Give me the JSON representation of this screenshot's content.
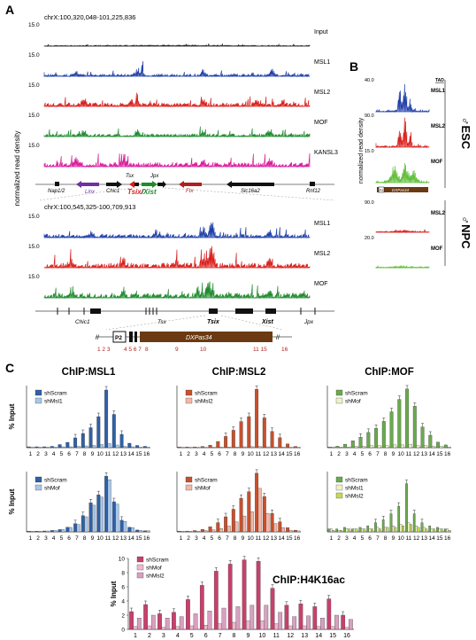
{
  "panel_a": {
    "letter": "A",
    "region_top": "chrX:100,320,048-101,225,836",
    "region_bottom": "chrX:100,545,325-100,709,913",
    "ylabel": "normalized read density",
    "scale": "15.0",
    "tracks_top": [
      {
        "name": "Input",
        "color": "#222222"
      },
      {
        "name": "MSL1",
        "color": "#1f3fa8"
      },
      {
        "name": "MSL2",
        "color": "#d9201c"
      },
      {
        "name": "MOF",
        "color": "#1f8a2e"
      },
      {
        "name": "KANSL3",
        "color": "#d81b9b"
      }
    ],
    "tracks_bottom": [
      {
        "name": "MSL1",
        "color": "#1f3fa8"
      },
      {
        "name": "MSL2",
        "color": "#d9201c"
      },
      {
        "name": "MOF",
        "color": "#1f8a2e"
      }
    ],
    "genes": [
      "Nap1/2",
      "Linx",
      "Chic1",
      "Tsx",
      "Jpx",
      "Tsix",
      "Xist",
      "Ftx",
      "Slc16a2",
      "Rnf12"
    ],
    "zoom_genes": [
      "Chic1",
      "Tsx",
      "Tsix",
      "Xist",
      "Jpx"
    ],
    "tsix_label": "Tsix",
    "xist_label": "Xist",
    "slash": "/",
    "p2": "P2",
    "dxpas": "DXPas34",
    "break_mark": "//",
    "amplicons_left": "1 2 3",
    "amplicons_mid": "4 5 6 7",
    "amplicon_8": "8",
    "amplicon_9": "9",
    "amplicon_10": "10",
    "amplicons_right": "11 15",
    "amplicon_16": "16"
  },
  "panel_b": {
    "letter": "B",
    "tad": "TAD",
    "ylabel": "normalized read density",
    "esc_label": "ESC",
    "npc_label": "NPC",
    "esc_tracks": [
      {
        "name": "MSL1",
        "scale": "40.0",
        "color": "#1f3fa8"
      },
      {
        "name": "MSL2",
        "scale": "90.0",
        "color": "#d9201c"
      },
      {
        "name": "MOF",
        "scale": "15.0",
        "color": "#62bf3c"
      }
    ],
    "npc_tracks": [
      {
        "name": "MSL2",
        "scale": "90.0",
        "color": "#d9201c"
      },
      {
        "name": "MOF",
        "scale": "20.0",
        "color": "#62bf3c"
      }
    ],
    "p2": "P2",
    "dxpas": "DXPas34"
  },
  "panel_c": {
    "letter": "C",
    "x_ticks": [
      "1",
      "2",
      "3",
      "4",
      "5",
      "6",
      "7",
      "8",
      "9",
      "10",
      "11",
      "12",
      "13",
      "14",
      "15",
      "16"
    ],
    "ylabel": "% Input"
  },
  "chart_data": [
    {
      "type": "bar",
      "title": "ChIP:MSL1",
      "ylim": [
        0,
        1.4
      ],
      "series": [
        {
          "name": "shScram",
          "color": "#3060a8",
          "values": [
            0.02,
            0.02,
            0.02,
            0.03,
            0.07,
            0.12,
            0.22,
            0.32,
            0.45,
            0.7,
            1.3,
            0.75,
            0.3,
            0.1,
            0.05,
            0.03
          ]
        },
        {
          "name": "shMsl1",
          "color": "#a8c8e8",
          "values": [
            0.01,
            0.01,
            0.01,
            0.01,
            0.02,
            0.02,
            0.03,
            0.04,
            0.05,
            0.07,
            0.09,
            0.06,
            0.03,
            0.02,
            0.01,
            0.01
          ]
        }
      ]
    },
    {
      "type": "bar",
      "title": "ChIP:MSL2",
      "ylim": [
        0,
        5
      ],
      "series": [
        {
          "name": "shScram",
          "color": "#c8502c",
          "values": [
            0.05,
            0.05,
            0.05,
            0.1,
            0.2,
            0.5,
            0.9,
            1.4,
            2.1,
            2.5,
            4.7,
            2.4,
            1.3,
            0.8,
            0.3,
            0.1
          ]
        },
        {
          "name": "shMsl2",
          "color": "#f2b8a8",
          "values": [
            0.02,
            0.02,
            0.02,
            0.02,
            0.03,
            0.04,
            0.05,
            0.06,
            0.07,
            0.08,
            0.1,
            0.07,
            0.05,
            0.04,
            0.03,
            0.02
          ]
        }
      ]
    },
    {
      "type": "bar",
      "title": "ChIP:MOF",
      "ylim": [
        0,
        0.9
      ],
      "series": [
        {
          "name": "shScram",
          "color": "#6aaa4c",
          "values": [
            0.01,
            0.02,
            0.05,
            0.1,
            0.15,
            0.22,
            0.28,
            0.38,
            0.52,
            0.7,
            0.85,
            0.6,
            0.3,
            0.18,
            0.08,
            0.04
          ]
        },
        {
          "name": "shMof",
          "color": "#eef2c8",
          "values": [
            0.01,
            0.01,
            0.01,
            0.02,
            0.02,
            0.03,
            0.03,
            0.03,
            0.04,
            0.04,
            0.05,
            0.03,
            0.03,
            0.02,
            0.02,
            0.01
          ]
        }
      ]
    },
    {
      "type": "bar",
      "ylim": [
        0,
        2.6
      ],
      "series": [
        {
          "name": "shScram",
          "color": "#3060a8",
          "values": [
            0.03,
            0.03,
            0.04,
            0.06,
            0.1,
            0.2,
            0.35,
            0.7,
            1.25,
            1.6,
            2.4,
            1.3,
            0.5,
            0.2,
            0.08,
            0.05
          ]
        },
        {
          "name": "shMof",
          "color": "#a8c8e8",
          "values": [
            0.03,
            0.03,
            0.04,
            0.06,
            0.1,
            0.19,
            0.32,
            0.65,
            1.15,
            1.5,
            2.25,
            1.2,
            0.45,
            0.18,
            0.07,
            0.05
          ]
        }
      ]
    },
    {
      "type": "bar",
      "ylim": [
        0,
        3.6
      ],
      "series": [
        {
          "name": "shScram",
          "color": "#c8502c",
          "values": [
            0.05,
            0.05,
            0.08,
            0.15,
            0.3,
            0.55,
            0.9,
            1.35,
            2.0,
            2.4,
            3.5,
            2.1,
            1.1,
            0.6,
            0.25,
            0.1
          ]
        },
        {
          "name": "shMof",
          "color": "#f2b8a8",
          "values": [
            0.04,
            0.04,
            0.05,
            0.08,
            0.12,
            0.2,
            0.35,
            0.6,
            0.95,
            1.2,
            2.6,
            1.1,
            0.5,
            0.25,
            0.1,
            0.06
          ]
        }
      ]
    },
    {
      "type": "bar",
      "ylim": [
        0,
        0.4
      ],
      "series": [
        {
          "name": "shScram",
          "color": "#6aaa4c",
          "values": [
            0.02,
            0.02,
            0.03,
            0.02,
            0.03,
            0.04,
            0.06,
            0.08,
            0.12,
            0.17,
            0.32,
            0.12,
            0.06,
            0.04,
            0.03,
            0.02
          ]
        },
        {
          "name": "shMsl1",
          "color": "#eef2c8",
          "values": [
            0.02,
            0.01,
            0.02,
            0.02,
            0.02,
            0.02,
            0.03,
            0.03,
            0.04,
            0.05,
            0.06,
            0.04,
            0.03,
            0.02,
            0.02,
            0.02
          ]
        },
        {
          "name": "shMsl2",
          "color": "#c8d850",
          "values": [
            0.01,
            0.01,
            0.02,
            0.02,
            0.02,
            0.02,
            0.02,
            0.03,
            0.03,
            0.04,
            0.05,
            0.03,
            0.02,
            0.02,
            0.02,
            0.01
          ]
        }
      ]
    },
    {
      "type": "bar",
      "title": "ChIP:H4K16ac",
      "ylim": [
        0,
        10
      ],
      "yticks": [
        0,
        2,
        4,
        6,
        8,
        10
      ],
      "series": [
        {
          "name": "shScram",
          "color": "#c8406c",
          "values": [
            2.5,
            3.5,
            2.2,
            2.4,
            4.2,
            6.2,
            8.2,
            9.2,
            9.8,
            9.6,
            5.8,
            3.4,
            3.6,
            3.2,
            4.3,
            2.0
          ]
        },
        {
          "name": "shMof",
          "color": "#f0b8cc",
          "values": [
            0.4,
            0.5,
            0.3,
            0.4,
            0.5,
            0.6,
            0.8,
            1.0,
            1.2,
            1.2,
            0.8,
            0.5,
            0.5,
            0.4,
            0.4,
            0.3
          ]
        },
        {
          "name": "shMsl2",
          "color": "#d8a0c0",
          "values": [
            1.6,
            2.0,
            1.6,
            1.8,
            2.2,
            2.6,
            3.0,
            3.2,
            3.4,
            3.4,
            2.4,
            1.8,
            1.9,
            1.6,
            2.0,
            1.4
          ]
        }
      ]
    }
  ]
}
